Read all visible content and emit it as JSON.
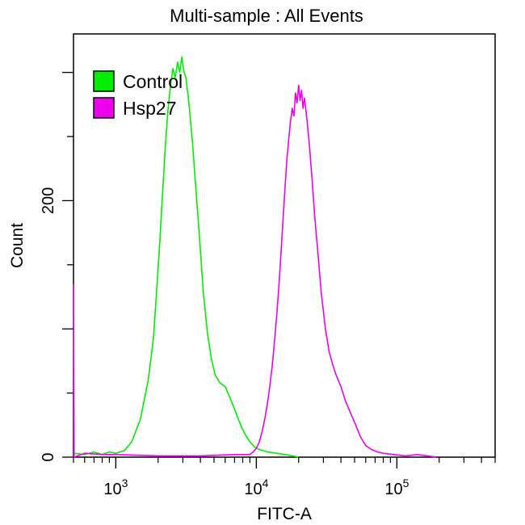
{
  "chart_data": {
    "type": "line",
    "title": "Multi-sample : All Events",
    "xlabel": "FITC-A",
    "ylabel": "Count",
    "x_scale": "log",
    "xlim": [
      500,
      500000
    ],
    "ylim": [
      0,
      330
    ],
    "x_ticks": [
      {
        "value": 1000,
        "base": "10",
        "exp": "3"
      },
      {
        "value": 10000,
        "base": "10",
        "exp": "4"
      },
      {
        "value": 100000,
        "base": "10",
        "exp": "5"
      }
    ],
    "y_ticks": [
      {
        "value": 0,
        "label": "0"
      },
      {
        "value": 200,
        "label": "200"
      }
    ],
    "grid": false,
    "legend_position": "top-left",
    "series": [
      {
        "name": "Control",
        "color": "#00ee00",
        "points": [
          [
            500,
            3
          ],
          [
            600,
            2
          ],
          [
            700,
            4
          ],
          [
            800,
            2
          ],
          [
            900,
            4
          ],
          [
            1000,
            3
          ],
          [
            1150,
            5
          ],
          [
            1300,
            12
          ],
          [
            1500,
            30
          ],
          [
            1700,
            60
          ],
          [
            1850,
            92
          ],
          [
            1950,
            128
          ],
          [
            2050,
            165
          ],
          [
            2150,
            205
          ],
          [
            2250,
            242
          ],
          [
            2350,
            270
          ],
          [
            2450,
            290
          ],
          [
            2550,
            303
          ],
          [
            2650,
            296
          ],
          [
            2750,
            308
          ],
          [
            2850,
            300
          ],
          [
            2950,
            312
          ],
          [
            3050,
            301
          ],
          [
            3150,
            296
          ],
          [
            3300,
            278
          ],
          [
            3500,
            248
          ],
          [
            3700,
            212
          ],
          [
            3950,
            170
          ],
          [
            4200,
            128
          ],
          [
            4500,
            96
          ],
          [
            4800,
            76
          ],
          [
            5100,
            64
          ],
          [
            5500,
            58
          ],
          [
            6000,
            55
          ],
          [
            6400,
            48
          ],
          [
            6800,
            41
          ],
          [
            7300,
            32
          ],
          [
            7800,
            24
          ],
          [
            8400,
            17
          ],
          [
            9000,
            12
          ],
          [
            9700,
            8
          ],
          [
            10500,
            6
          ],
          [
            12000,
            4
          ],
          [
            14000,
            3
          ],
          [
            16000,
            2
          ],
          [
            18000,
            1
          ],
          [
            20000,
            0
          ]
        ]
      },
      {
        "name": "Hsp27",
        "color": "#ee00ee",
        "points": [
          [
            500,
            135
          ],
          [
            505,
            0
          ],
          [
            600,
            3
          ],
          [
            800,
            2
          ],
          [
            1000,
            2
          ],
          [
            2000,
            1
          ],
          [
            4000,
            1
          ],
          [
            7000,
            2
          ],
          [
            9000,
            2
          ],
          [
            9500,
            4
          ],
          [
            10000,
            7
          ],
          [
            10500,
            12
          ],
          [
            11000,
            20
          ],
          [
            11500,
            30
          ],
          [
            12000,
            42
          ],
          [
            12500,
            56
          ],
          [
            13000,
            72
          ],
          [
            13500,
            92
          ],
          [
            14000,
            112
          ],
          [
            14500,
            135
          ],
          [
            15000,
            160
          ],
          [
            15500,
            186
          ],
          [
            16000,
            210
          ],
          [
            16500,
            232
          ],
          [
            17000,
            248
          ],
          [
            17500,
            262
          ],
          [
            18000,
            272
          ],
          [
            18500,
            266
          ],
          [
            19000,
            284
          ],
          [
            19500,
            276
          ],
          [
            20000,
            290
          ],
          [
            20500,
            278
          ],
          [
            21000,
            286
          ],
          [
            21500,
            272
          ],
          [
            22000,
            280
          ],
          [
            23000,
            262
          ],
          [
            24000,
            240
          ],
          [
            25000,
            215
          ],
          [
            26000,
            188
          ],
          [
            27500,
            158
          ],
          [
            29000,
            128
          ],
          [
            31000,
            100
          ],
          [
            33000,
            82
          ],
          [
            35000,
            72
          ],
          [
            37000,
            64
          ],
          [
            40000,
            55
          ],
          [
            43000,
            44
          ],
          [
            47000,
            34
          ],
          [
            51000,
            25
          ],
          [
            55000,
            16
          ],
          [
            60000,
            9
          ],
          [
            66000,
            6
          ],
          [
            73000,
            4
          ],
          [
            80000,
            3
          ],
          [
            95000,
            2
          ],
          [
            115000,
            1
          ],
          [
            140000,
            2
          ],
          [
            165000,
            1
          ],
          [
            190000,
            0
          ]
        ]
      }
    ]
  }
}
